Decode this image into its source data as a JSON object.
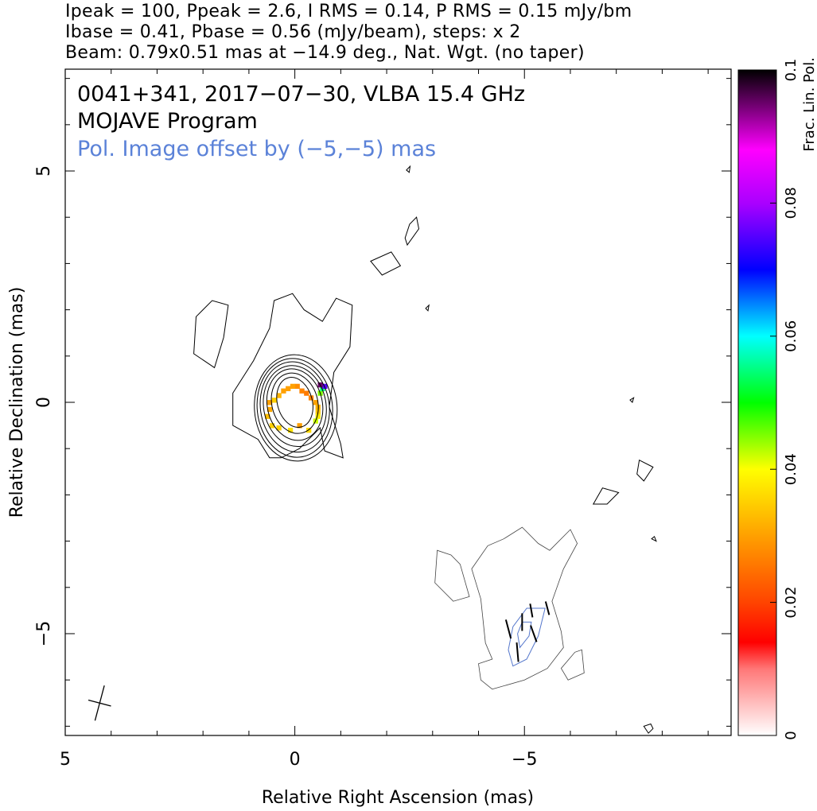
{
  "header": {
    "line1": "Ipeak = 100, Ppeak = 2.6, I RMS = 0.14, P RMS = 0.15 mJy/bm",
    "line2": "Ibase = 0.41, Pbase = 0.56 (mJy/beam), steps: x 2",
    "line3": "Beam: 0.79x0.51 mas at −14.9 deg., Nat. Wgt. (no taper)"
  },
  "annotations": {
    "source": "0041+341, 2017−07−30, VLBA 15.4 GHz",
    "program": "MOJAVE Program",
    "offset_note": "Pol. Image offset by (−5,−5) mas"
  },
  "colors": {
    "offset_note": "#5b82d8",
    "stokes_i_contour": "#000000",
    "pol_contour": "#5577cc",
    "evpa_tick": "#000000"
  },
  "chart_data": {
    "type": "heatmap",
    "title": "",
    "xlabel": "Relative Right Ascension (mas)",
    "ylabel": "Relative Declination (mas)",
    "xlim": [
      5,
      -9.5
    ],
    "ylim": [
      -7.2,
      7.2
    ],
    "x_ticks": [
      {
        "value": 5,
        "label": "5"
      },
      {
        "value": 0,
        "label": "0"
      },
      {
        "value": -5,
        "label": "−5"
      }
    ],
    "y_ticks": [
      {
        "value": 5,
        "label": "5"
      },
      {
        "value": 0,
        "label": "0"
      },
      {
        "value": -5,
        "label": "−5"
      }
    ],
    "minor_tick_step": 1,
    "colorbar": {
      "label": "Frac. Lin. Pol.",
      "range": [
        0,
        0.1
      ],
      "ticks": [
        {
          "value": 0,
          "label": "0"
        },
        {
          "value": 0.02,
          "label": "0.02"
        },
        {
          "value": 0.04,
          "label": "0.04"
        },
        {
          "value": 0.06,
          "label": "0.06"
        },
        {
          "value": 0.08,
          "label": "0.08"
        },
        {
          "value": 0.1,
          "label": "0.1"
        }
      ],
      "stops": [
        {
          "v": 0.0,
          "c": "#ffffff"
        },
        {
          "v": 0.01,
          "c": "#ff7777"
        },
        {
          "v": 0.014,
          "c": "#ff0000"
        },
        {
          "v": 0.02,
          "c": "#ff4400"
        },
        {
          "v": 0.03,
          "c": "#ffa000"
        },
        {
          "v": 0.04,
          "c": "#ffff00"
        },
        {
          "v": 0.05,
          "c": "#00ff00"
        },
        {
          "v": 0.06,
          "c": "#00ffff"
        },
        {
          "v": 0.07,
          "c": "#0000ff"
        },
        {
          "v": 0.08,
          "c": "#aa00ff"
        },
        {
          "v": 0.088,
          "c": "#ff00ff"
        },
        {
          "v": 0.1,
          "c": "#000000"
        }
      ]
    },
    "core_contours": [
      {
        "cx": 0,
        "cy": 0,
        "rx": 0.38,
        "ry": 0.55,
        "angle": -15
      },
      {
        "cx": 0,
        "cy": -0.02,
        "rx": 0.5,
        "ry": 0.66,
        "angle": -14
      },
      {
        "cx": 0,
        "cy": -0.05,
        "rx": 0.6,
        "ry": 0.78,
        "angle": -12
      },
      {
        "cx": 0,
        "cy": -0.08,
        "rx": 0.68,
        "ry": 0.88,
        "angle": -10
      },
      {
        "cx": 0,
        "cy": -0.1,
        "rx": 0.75,
        "ry": 0.98,
        "angle": -8
      },
      {
        "cx": 0,
        "cy": -0.12,
        "rx": 0.82,
        "ry": 1.07,
        "angle": -6
      },
      {
        "cx": -0.02,
        "cy": -0.12,
        "rx": 0.9,
        "ry": 1.15,
        "angle": -4
      }
    ],
    "outer_contours": [
      [
        [
          0.55,
          -1.2
        ],
        [
          0.8,
          -0.8
        ],
        [
          1.35,
          -0.5
        ],
        [
          1.35,
          0.2
        ],
        [
          0.9,
          0.9
        ],
        [
          0.55,
          1.6
        ],
        [
          0.45,
          2.2
        ],
        [
          0.05,
          2.35
        ],
        [
          -0.2,
          2.0
        ],
        [
          -0.6,
          1.75
        ],
        [
          -0.9,
          2.25
        ],
        [
          -1.25,
          2.1
        ],
        [
          -1.2,
          1.2
        ],
        [
          -0.85,
          0.65
        ],
        [
          -0.75,
          -0.1
        ],
        [
          -1.0,
          -0.9
        ],
        [
          -1.05,
          -1.2
        ],
        [
          -0.65,
          -1.05
        ],
        [
          -0.55,
          -0.55
        ],
        [
          -0.1,
          -1.0
        ],
        [
          0.3,
          -1.2
        ]
      ],
      [
        [
          1.75,
          0.75
        ],
        [
          2.2,
          1.05
        ],
        [
          2.15,
          1.85
        ],
        [
          1.8,
          2.2
        ],
        [
          1.45,
          2.1
        ],
        [
          1.55,
          1.4
        ]
      ],
      [
        [
          -1.65,
          3.05
        ],
        [
          -2.1,
          3.25
        ],
        [
          -2.3,
          2.95
        ],
        [
          -1.9,
          2.75
        ]
      ],
      [
        [
          -2.45,
          3.4
        ],
        [
          -2.7,
          3.75
        ],
        [
          -2.65,
          4.0
        ],
        [
          -2.5,
          3.85
        ],
        [
          -2.4,
          3.55
        ]
      ],
      [
        [
          -2.43,
          5.02
        ],
        [
          -2.51,
          5.1
        ],
        [
          -2.49,
          4.97
        ]
      ],
      [
        [
          -2.85,
          2.03
        ],
        [
          -2.92,
          2.1
        ],
        [
          -2.9,
          1.98
        ]
      ],
      [
        [
          -7.3,
          0.05
        ],
        [
          -7.38,
          0.1
        ],
        [
          -7.35,
          0.0
        ]
      ],
      [
        [
          -7.5,
          -1.25
        ],
        [
          -7.8,
          -1.4
        ],
        [
          -7.6,
          -1.7
        ],
        [
          -7.45,
          -1.55
        ]
      ],
      [
        [
          -6.7,
          -1.85
        ],
        [
          -7.05,
          -1.95
        ],
        [
          -6.8,
          -2.2
        ],
        [
          -6.5,
          -2.2
        ]
      ],
      [
        [
          -7.77,
          -2.95
        ],
        [
          -7.87,
          -3.0
        ],
        [
          -7.83,
          -2.9
        ]
      ],
      [
        [
          -7.6,
          -7.0
        ],
        [
          -7.7,
          -7.15
        ],
        [
          -7.8,
          -7.05
        ],
        [
          -7.75,
          -6.95
        ]
      ]
    ],
    "offset_contours": [
      [
        [
          -3.4,
          -3.3
        ],
        [
          -3.1,
          -3.2
        ],
        [
          -3.05,
          -3.9
        ],
        [
          -3.45,
          -4.3
        ],
        [
          -3.8,
          -4.2
        ],
        [
          -3.6,
          -3.5
        ]
      ],
      [
        [
          -4.3,
          -6.2
        ],
        [
          -5.0,
          -6.0
        ],
        [
          -5.5,
          -5.75
        ],
        [
          -5.85,
          -5.3
        ],
        [
          -5.8,
          -4.95
        ],
        [
          -5.6,
          -4.3
        ],
        [
          -5.85,
          -3.6
        ],
        [
          -6.15,
          -3.05
        ],
        [
          -6.0,
          -2.75
        ],
        [
          -5.55,
          -3.2
        ],
        [
          -5.3,
          -3.05
        ],
        [
          -4.95,
          -2.7
        ],
        [
          -4.55,
          -2.95
        ],
        [
          -4.2,
          -3.1
        ],
        [
          -3.85,
          -3.6
        ],
        [
          -4.05,
          -4.25
        ],
        [
          -4.15,
          -5.2
        ],
        [
          -4.3,
          -5.55
        ],
        [
          -4.0,
          -5.65
        ],
        [
          -4.05,
          -6.0
        ]
      ],
      [
        [
          -5.95,
          -6.0
        ],
        [
          -6.3,
          -5.85
        ],
        [
          -6.25,
          -5.35
        ],
        [
          -6.1,
          -5.4
        ],
        [
          -5.8,
          -5.75
        ]
      ]
    ],
    "pol_contours": [
      [
        [
          -4.75,
          -5.7
        ],
        [
          -5.05,
          -5.55
        ],
        [
          -5.3,
          -5.05
        ],
        [
          -5.45,
          -4.45
        ],
        [
          -5.05,
          -4.45
        ],
        [
          -4.75,
          -4.85
        ],
        [
          -4.65,
          -5.35
        ]
      ],
      [
        [
          -4.9,
          -5.3
        ],
        [
          -5.1,
          -5.05
        ],
        [
          -5.15,
          -4.75
        ],
        [
          -4.95,
          -4.75
        ],
        [
          -4.85,
          -5.0
        ]
      ]
    ],
    "evpa_ticks": [
      {
        "x": -4.65,
        "y": -4.9,
        "len": 0.42,
        "angle": 75
      },
      {
        "x": -4.85,
        "y": -5.4,
        "len": 0.42,
        "angle": 85
      },
      {
        "x": -4.95,
        "y": -4.75,
        "len": 0.38,
        "angle": 90
      },
      {
        "x": -5.2,
        "y": -5.0,
        "len": 0.38,
        "angle": 70
      },
      {
        "x": -5.15,
        "y": -4.5,
        "len": 0.3,
        "angle": 80
      },
      {
        "x": -5.5,
        "y": -4.45,
        "len": 0.3,
        "angle": 75
      }
    ],
    "frac_pol_pixels": [
      {
        "x": -0.05,
        "y": 0.35,
        "v": 0.028
      },
      {
        "x": 0.05,
        "y": 0.35,
        "v": 0.03
      },
      {
        "x": 0.15,
        "y": 0.3,
        "v": 0.03
      },
      {
        "x": -0.15,
        "y": 0.25,
        "v": 0.027
      },
      {
        "x": 0.25,
        "y": 0.25,
        "v": 0.03
      },
      {
        "x": -0.25,
        "y": 0.2,
        "v": 0.026
      },
      {
        "x": 0.35,
        "y": 0.15,
        "v": 0.032
      },
      {
        "x": -0.35,
        "y": 0.1,
        "v": 0.027
      },
      {
        "x": 0.45,
        "y": 0.05,
        "v": 0.035
      },
      {
        "x": 0.55,
        "y": 0.0,
        "v": 0.03
      },
      {
        "x": -0.45,
        "y": 0.0,
        "v": 0.03
      },
      {
        "x": -0.5,
        "y": -0.1,
        "v": 0.032
      },
      {
        "x": -0.5,
        "y": -0.2,
        "v": 0.034
      },
      {
        "x": 0.55,
        "y": -0.15,
        "v": 0.031
      },
      {
        "x": 0.6,
        "y": -0.3,
        "v": 0.033
      },
      {
        "x": -0.5,
        "y": -0.3,
        "v": 0.038
      },
      {
        "x": -0.45,
        "y": -0.4,
        "v": 0.042
      },
      {
        "x": -0.55,
        "y": 0.2,
        "v": 0.045
      },
      {
        "x": -0.6,
        "y": 0.3,
        "v": 0.055
      },
      {
        "x": -0.65,
        "y": 0.35,
        "v": 0.075
      },
      {
        "x": -0.55,
        "y": 0.38,
        "v": 0.095
      },
      {
        "x": 0.5,
        "y": -0.5,
        "v": 0.035
      },
      {
        "x": -0.3,
        "y": -0.6,
        "v": 0.036
      },
      {
        "x": 0.1,
        "y": -0.6,
        "v": 0.037
      },
      {
        "x": 0.35,
        "y": -0.55,
        "v": 0.035
      },
      {
        "x": -0.1,
        "y": -0.5,
        "v": 0.03
      }
    ],
    "beam": {
      "x": 4.25,
      "y": -6.5,
      "major": 0.79,
      "minor": 0.51,
      "pa": -14.9
    }
  }
}
